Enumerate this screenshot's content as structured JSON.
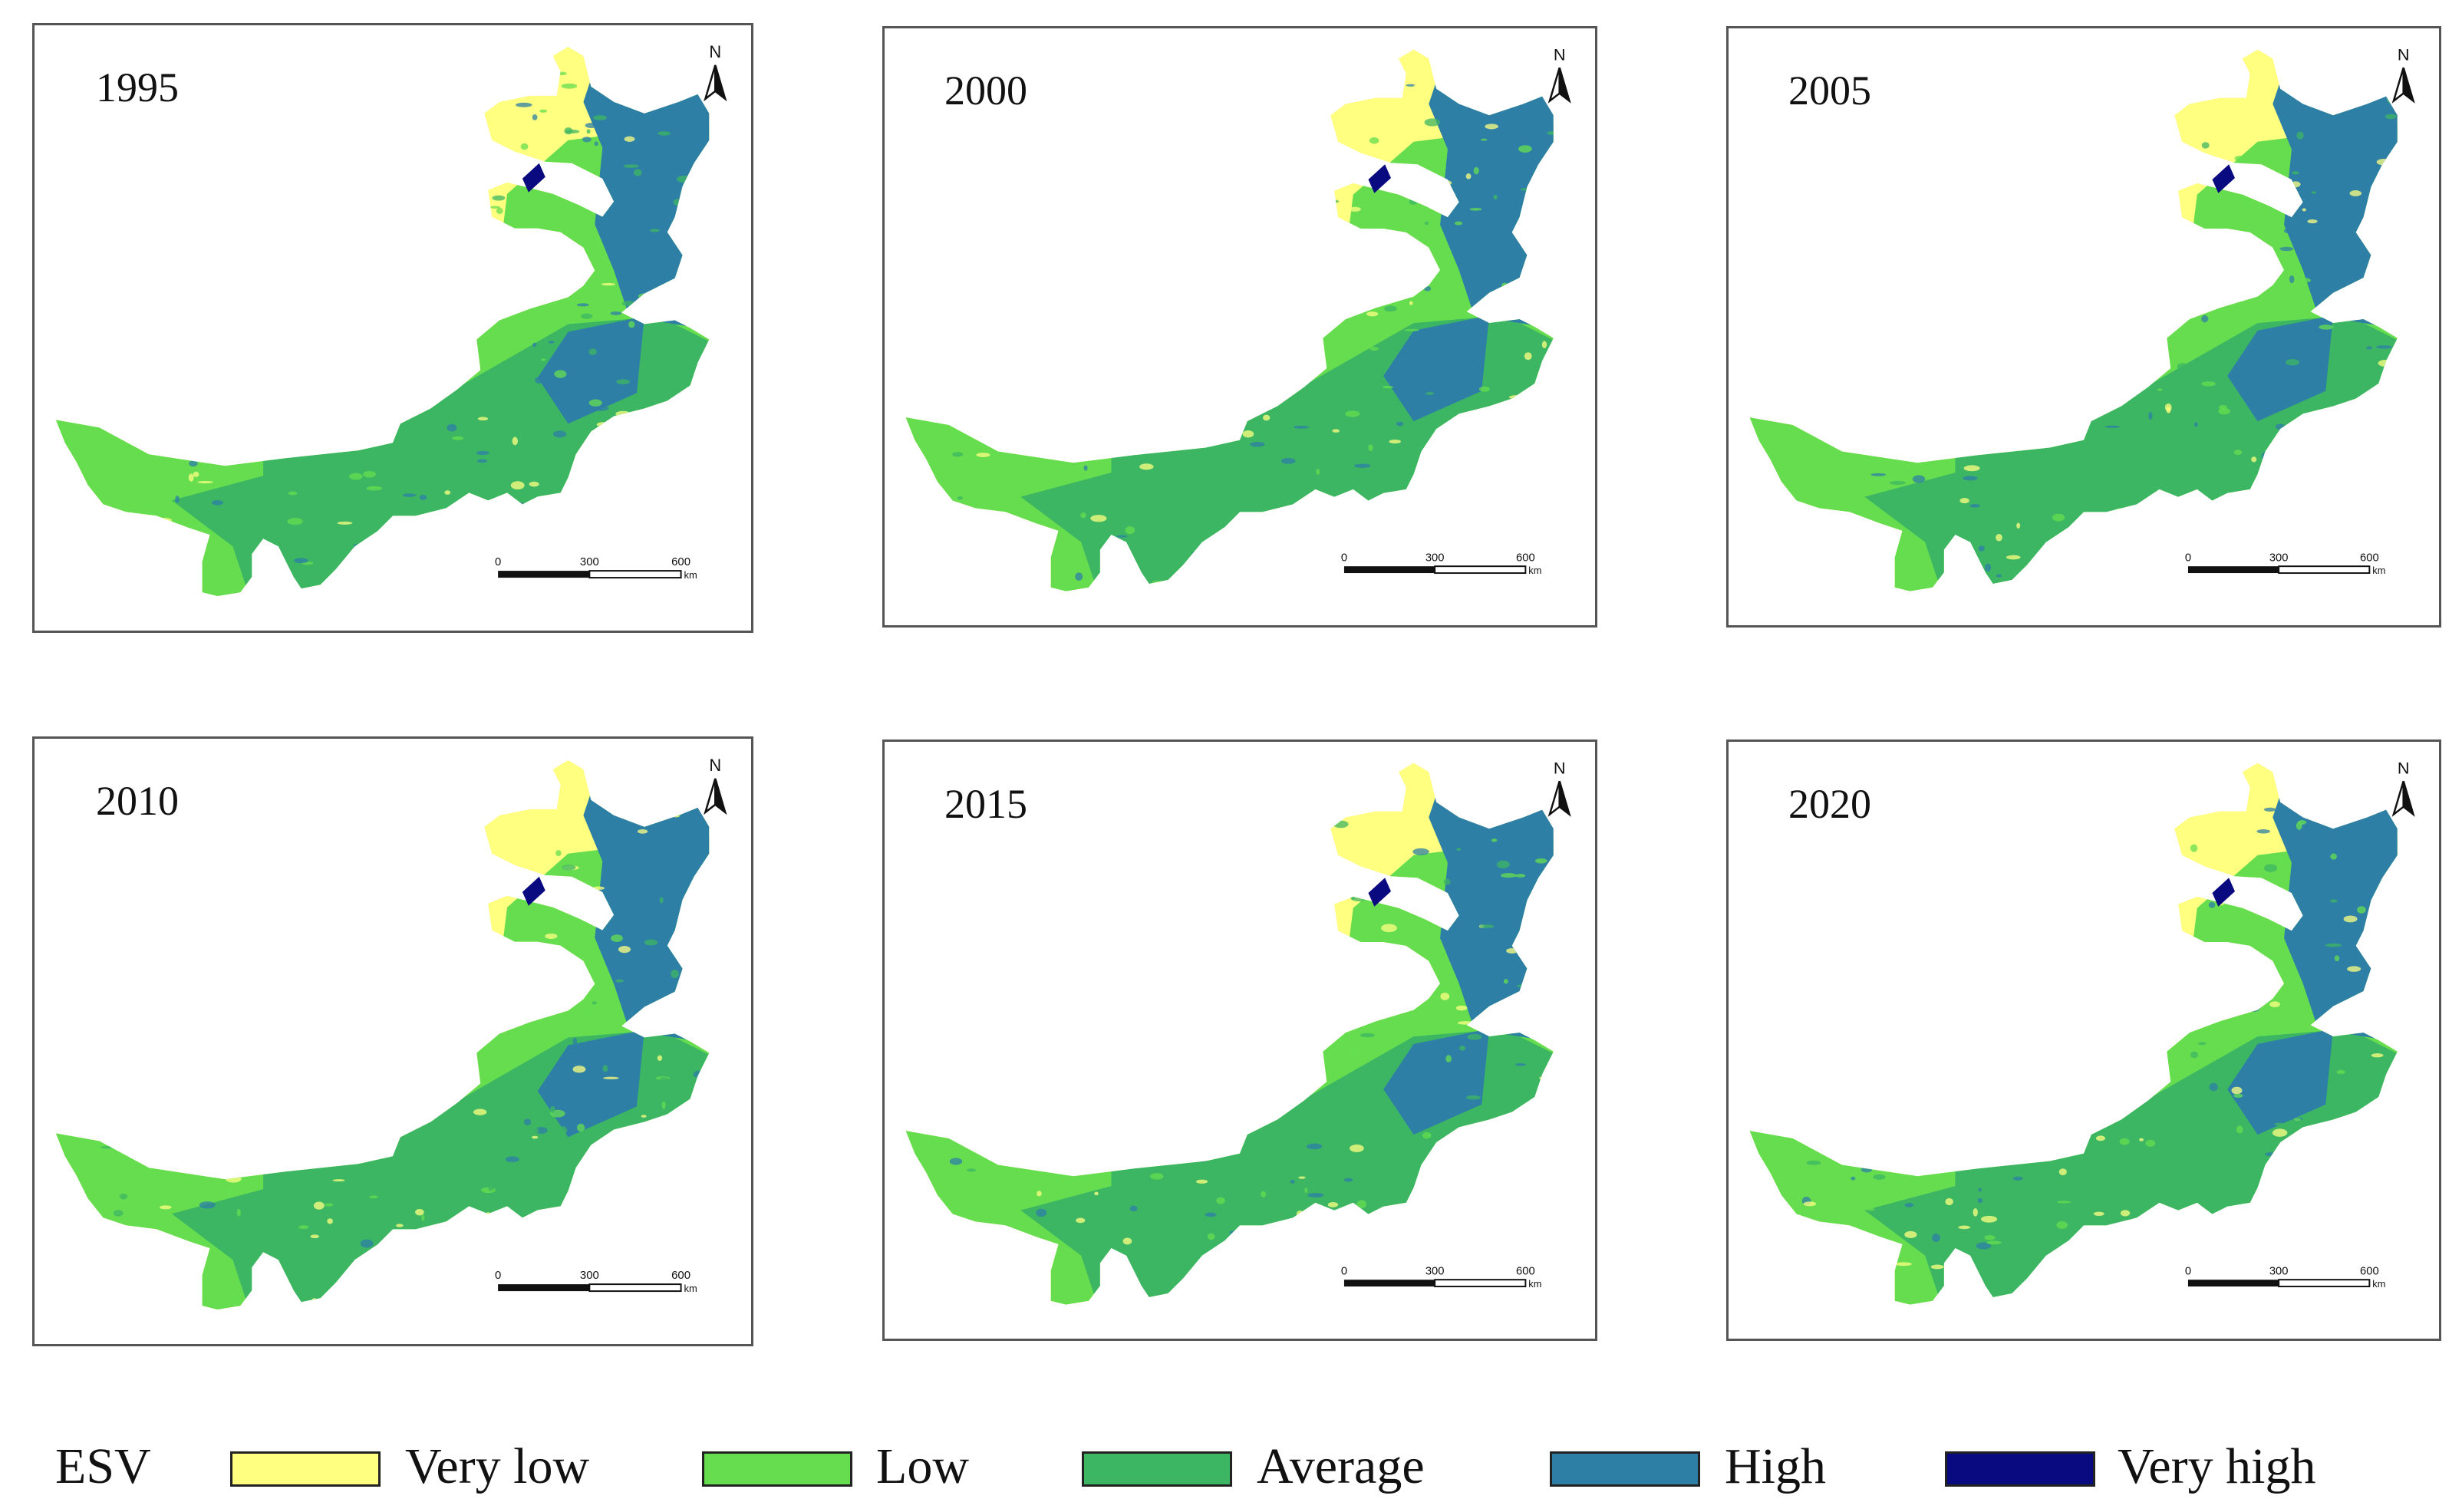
{
  "figure": {
    "panels": [
      {
        "year": "1995"
      },
      {
        "year": "2000"
      },
      {
        "year": "2005"
      },
      {
        "year": "2010"
      },
      {
        "year": "2015"
      },
      {
        "year": "2020"
      }
    ],
    "north_arrow": {
      "label": "N"
    },
    "scale_bar": {
      "ticks": [
        "0",
        "300",
        "600"
      ],
      "unit": "km"
    },
    "legend": {
      "title": "ESV",
      "classes": [
        {
          "label": "Very low",
          "color": "#FFFF80"
        },
        {
          "label": "Low",
          "color": "#66DD4F"
        },
        {
          "label": "Average",
          "color": "#3DB663"
        },
        {
          "label": "High",
          "color": "#2E7FA5"
        },
        {
          "label": "Very high",
          "color": "#0A0A80"
        }
      ]
    }
  }
}
